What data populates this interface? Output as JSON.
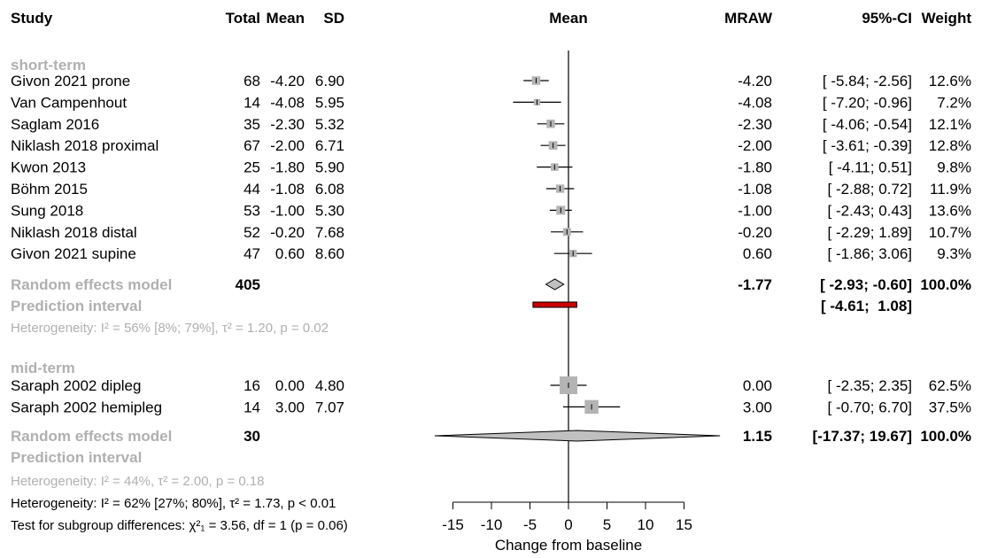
{
  "headers": {
    "study": "Study",
    "total": "Total",
    "mean": "Mean",
    "sd": "SD",
    "plot": "Mean",
    "mraw": "MRAW",
    "ci": "95%-CI",
    "weight": "Weight"
  },
  "subgroups": [
    {
      "title": "short-term",
      "studies": [
        {
          "study": "Givon 2021 prone",
          "total": "68",
          "mean": "-4.20",
          "sd": "6.90",
          "mraw": "-4.20",
          "ci": "[ -5.84; -2.56]",
          "weight": "12.6%"
        },
        {
          "study": "Van Campenhout",
          "total": "14",
          "mean": "-4.08",
          "sd": "5.95",
          "mraw": "-4.08",
          "ci": "[ -7.20; -0.96]",
          "weight": "7.2%"
        },
        {
          "study": "Saglam 2016",
          "total": "35",
          "mean": "-2.30",
          "sd": "5.32",
          "mraw": "-2.30",
          "ci": "[ -4.06; -0.54]",
          "weight": "12.1%"
        },
        {
          "study": "Niklash 2018 proximal",
          "total": "67",
          "mean": "-2.00",
          "sd": "6.71",
          "mraw": "-2.00",
          "ci": "[ -3.61; -0.39]",
          "weight": "12.8%"
        },
        {
          "study": "Kwon 2013",
          "total": "25",
          "mean": "-1.80",
          "sd": "5.90",
          "mraw": "-1.80",
          "ci": "[ -4.11;  0.51]",
          "weight": "9.8%"
        },
        {
          "study": "Böhm 2015",
          "total": "44",
          "mean": "-1.08",
          "sd": "6.08",
          "mraw": "-1.08",
          "ci": "[ -2.88;  0.72]",
          "weight": "11.9%"
        },
        {
          "study": "Sung 2018",
          "total": "53",
          "mean": "-1.00",
          "sd": "5.30",
          "mraw": "-1.00",
          "ci": "[ -2.43;  0.43]",
          "weight": "13.6%"
        },
        {
          "study": "Niklash 2018 distal",
          "total": "52",
          "mean": "-0.20",
          "sd": "7.68",
          "mraw": "-0.20",
          "ci": "[ -2.29;  1.89]",
          "weight": "10.7%"
        },
        {
          "study": "Givon 2021 supine",
          "total": "47",
          "mean": "0.60",
          "sd": "8.60",
          "mraw": "0.60",
          "ci": "[ -1.86;  3.06]",
          "weight": "9.3%"
        }
      ],
      "random": {
        "label": "Random effects model",
        "total": "405",
        "mraw": "-1.77",
        "ci": "[ -2.93; -0.60]",
        "weight": "100.0%"
      },
      "prediction": {
        "label": "Prediction interval",
        "ci": "[ -4.61;  1.08]"
      },
      "heterogeneity": "Heterogeneity: I² = 56% [8%; 79%], τ² = 1.20, p = 0.02"
    },
    {
      "title": "mid-term",
      "studies": [
        {
          "study": "Saraph 2002 dipleg",
          "total": "16",
          "mean": "0.00",
          "sd": "4.80",
          "mraw": "0.00",
          "ci": "[ -2.35;  2.35]",
          "weight": "62.5%"
        },
        {
          "study": "Saraph 2002 hemipleg",
          "total": "14",
          "mean": "3.00",
          "sd": "7.07",
          "mraw": "3.00",
          "ci": "[ -0.70;  6.70]",
          "weight": "37.5%"
        }
      ],
      "random": {
        "label": "Random effects model",
        "total": "30",
        "mraw": "1.15",
        "ci": "[-17.37; 19.67]",
        "weight": "100.0%"
      },
      "prediction": {
        "label": "Prediction interval",
        "ci": ""
      },
      "heterogeneity": "Heterogeneity: I² = 44%, τ² = 2.00, p = 0.18"
    }
  ],
  "overall_heterogeneity": "Heterogeneity: I² = 62% [27%; 80%], τ² = 1.73, p < 0.01",
  "subgroup_test": "Test for subgroup differences: χ²₁ = 3.56, df = 1 (p = 0.06)",
  "chart_data": {
    "type": "forest",
    "title": "",
    "xlabel": "Change from baseline",
    "xlim": [
      -15,
      15
    ],
    "xticks": [
      -15,
      -10,
      -5,
      0,
      5,
      10,
      15
    ],
    "reference_line": 0,
    "subgroups": [
      {
        "name": "short-term",
        "studies": [
          {
            "label": "Givon 2021 prone",
            "estimate": -4.2,
            "lower": -5.84,
            "upper": -2.56,
            "weight": 12.6
          },
          {
            "label": "Van Campenhout",
            "estimate": -4.08,
            "lower": -7.2,
            "upper": -0.96,
            "weight": 7.2
          },
          {
            "label": "Saglam 2016",
            "estimate": -2.3,
            "lower": -4.06,
            "upper": -0.54,
            "weight": 12.1
          },
          {
            "label": "Niklash 2018 proximal",
            "estimate": -2.0,
            "lower": -3.61,
            "upper": -0.39,
            "weight": 12.8
          },
          {
            "label": "Kwon 2013",
            "estimate": -1.8,
            "lower": -4.11,
            "upper": 0.51,
            "weight": 9.8
          },
          {
            "label": "Böhm 2015",
            "estimate": -1.08,
            "lower": -2.88,
            "upper": 0.72,
            "weight": 11.9
          },
          {
            "label": "Sung 2018",
            "estimate": -1.0,
            "lower": -2.43,
            "upper": 0.43,
            "weight": 13.6
          },
          {
            "label": "Niklash 2018 distal",
            "estimate": -0.2,
            "lower": -2.29,
            "upper": 1.89,
            "weight": 10.7
          },
          {
            "label": "Givon 2021 supine",
            "estimate": 0.6,
            "lower": -1.86,
            "upper": 3.06,
            "weight": 9.3
          }
        ],
        "pooled": {
          "estimate": -1.77,
          "lower": -2.93,
          "upper": -0.6
        },
        "prediction": {
          "lower": -4.61,
          "upper": 1.08
        }
      },
      {
        "name": "mid-term",
        "studies": [
          {
            "label": "Saraph 2002 dipleg",
            "estimate": 0.0,
            "lower": -2.35,
            "upper": 2.35,
            "weight": 62.5
          },
          {
            "label": "Saraph 2002 hemipleg",
            "estimate": 3.0,
            "lower": -0.7,
            "upper": 6.7,
            "weight": 37.5
          }
        ],
        "pooled": {
          "estimate": 1.15,
          "lower": -17.37,
          "upper": 19.67
        }
      }
    ],
    "colors": {
      "square": "#b4b4b4",
      "diamond": "#c0c0c0",
      "prediction": "#cc0000",
      "muted_text": "#b0b0b0"
    }
  }
}
